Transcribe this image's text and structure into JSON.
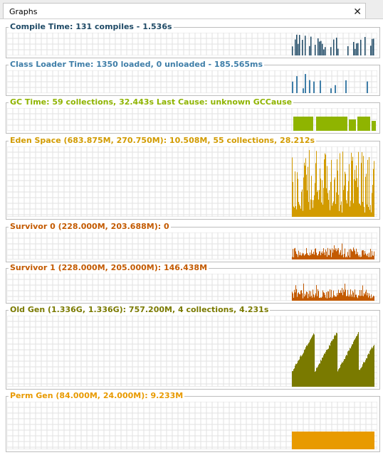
{
  "tab": {
    "title": "Graphs"
  },
  "panels": [
    {
      "id": "compile-time",
      "title": "Compile Time: 131 compiles - 1.536s",
      "color": "#1f4a66",
      "style": "spikes"
    },
    {
      "id": "class-loader-time",
      "title": "Class Loader Time: 1350 loaded, 0 unloaded - 185.565ms",
      "color": "#3f7ea8",
      "style": "sparse"
    },
    {
      "id": "gc-time",
      "title": "GC Time: 59 collections, 32.443s  Last Cause: unknown GCCause",
      "color": "#8fb400",
      "style": "blocks"
    },
    {
      "id": "eden-space",
      "title": "Eden Space (683.875M, 270.750M): 10.508M, 55 collections, 28.212s",
      "color": "#d29b00",
      "style": "tall"
    },
    {
      "id": "survivor-0",
      "title": "Survivor 0 (228.000M, 203.688M): 0",
      "color": "#c35a00",
      "style": "small"
    },
    {
      "id": "survivor-1",
      "title": "Survivor 1 (228.000M, 205.000M): 146.438M",
      "color": "#c35a00",
      "style": "small2"
    },
    {
      "id": "old-gen",
      "title": "Old Gen (1.336G, 1.336G): 757.200M, 4 collections, 4.231s",
      "color": "#7a7a00",
      "style": "sawtooth"
    },
    {
      "id": "perm-gen",
      "title": "Perm Gen (84.000M, 24.000M): 9.233M",
      "color": "#e89a00",
      "style": "flat"
    }
  ]
}
